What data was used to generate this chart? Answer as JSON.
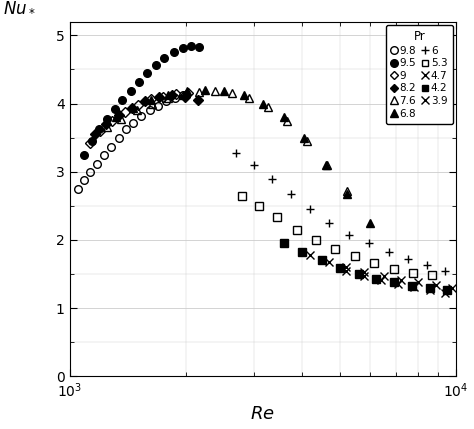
{
  "xlim": [
    1000,
    10000
  ],
  "ylim": [
    0,
    5.2
  ],
  "yticks": [
    0,
    1,
    2,
    3,
    4,
    5
  ],
  "legend_title": "Pr",
  "series": {
    "Pr9.8": {
      "label": "9.8",
      "marker": "o",
      "filled": false,
      "x": [
        1050,
        1090,
        1130,
        1180,
        1230,
        1280,
        1340,
        1400,
        1460,
        1530,
        1610,
        1690,
        1780,
        1870,
        1960
      ],
      "y": [
        2.75,
        2.88,
        3.0,
        3.12,
        3.25,
        3.37,
        3.5,
        3.62,
        3.72,
        3.82,
        3.9,
        3.97,
        4.03,
        4.08,
        4.12
      ]
    },
    "Pr9.5": {
      "label": "9.5",
      "marker": "o",
      "filled": true,
      "x": [
        1090,
        1140,
        1190,
        1250,
        1310,
        1370,
        1440,
        1510,
        1590,
        1670,
        1760,
        1860,
        1960,
        2060,
        2160
      ],
      "y": [
        3.25,
        3.45,
        3.62,
        3.78,
        3.92,
        4.05,
        4.18,
        4.32,
        4.45,
        4.57,
        4.67,
        4.75,
        4.82,
        4.85,
        4.83
      ]
    },
    "Pr9": {
      "label": "9",
      "marker": "D",
      "filled": false,
      "x": [
        1130,
        1200,
        1290,
        1390,
        1500,
        1620,
        1740,
        1880,
        2020
      ],
      "y": [
        3.42,
        3.6,
        3.75,
        3.88,
        3.98,
        4.06,
        4.1,
        4.14,
        4.16
      ]
    },
    "Pr8.2": {
      "label": "8.2",
      "marker": "D",
      "filled": true,
      "x": [
        1160,
        1240,
        1340,
        1450,
        1570,
        1700,
        1840,
        1990,
        2150
      ],
      "y": [
        3.55,
        3.7,
        3.83,
        3.94,
        4.03,
        4.09,
        4.12,
        4.1,
        4.05
      ]
    },
    "Pr7.6": {
      "label": "7.6",
      "marker": "^",
      "filled": false,
      "x": [
        1250,
        1360,
        1490,
        1630,
        1800,
        1970,
        2160,
        2380,
        2630,
        2920,
        3260,
        3660,
        4120,
        4640,
        5240
      ],
      "y": [
        3.65,
        3.78,
        3.9,
        4.0,
        4.08,
        4.13,
        4.17,
        4.18,
        4.15,
        4.08,
        3.95,
        3.75,
        3.45,
        3.1,
        2.72
      ]
    },
    "Pr6.8": {
      "label": "6.8",
      "marker": "^",
      "filled": true,
      "x": [
        1320,
        1460,
        1620,
        1800,
        2010,
        2240,
        2510,
        2820,
        3170,
        3580,
        4050,
        4610,
        5240,
        5980
      ],
      "y": [
        3.8,
        3.93,
        4.05,
        4.13,
        4.18,
        4.2,
        4.18,
        4.12,
        4.0,
        3.8,
        3.5,
        3.1,
        2.68,
        2.25
      ]
    },
    "Pr6": {
      "label": "6",
      "marker": "+",
      "filled": false,
      "x": [
        2700,
        3000,
        3350,
        3750,
        4200,
        4700,
        5300,
        5950,
        6700,
        7500,
        8400,
        9400
      ],
      "y": [
        3.28,
        3.1,
        2.9,
        2.68,
        2.45,
        2.25,
        2.08,
        1.95,
        1.83,
        1.72,
        1.63,
        1.55
      ]
    },
    "Pr5.3": {
      "label": "5.3",
      "marker": "s",
      "filled": false,
      "x": [
        2800,
        3100,
        3450,
        3870,
        4340,
        4870,
        5470,
        6150,
        6900,
        7740,
        8680
      ],
      "y": [
        2.65,
        2.5,
        2.33,
        2.15,
        2.0,
        1.87,
        1.76,
        1.66,
        1.58,
        1.52,
        1.48
      ]
    },
    "Pr4.7": {
      "label": "4.7",
      "marker": "x",
      "filled": false,
      "x": [
        4200,
        4700,
        5200,
        5800,
        6500,
        7200,
        8000,
        8900,
        9800
      ],
      "y": [
        1.78,
        1.68,
        1.6,
        1.53,
        1.47,
        1.42,
        1.38,
        1.34,
        1.3
      ]
    },
    "Pr4.2": {
      "label": "4.2",
      "marker": "s",
      "filled": true,
      "x": [
        3600,
        4000,
        4500,
        5000,
        5600,
        6200,
        6900,
        7700,
        8600,
        9500
      ],
      "y": [
        1.95,
        1.83,
        1.7,
        1.59,
        1.5,
        1.43,
        1.38,
        1.33,
        1.29,
        1.26
      ]
    },
    "Pr3.9": {
      "label": "3.9",
      "marker": "x",
      "filled": false,
      "x": [
        5200,
        5800,
        6400,
        7100,
        7800,
        8600,
        9400
      ],
      "y": [
        1.55,
        1.47,
        1.41,
        1.36,
        1.31,
        1.27,
        1.22
      ]
    }
  },
  "legend_order": [
    "9.8",
    "9.5",
    "9",
    "8.2",
    "7.6",
    "6.8",
    "6",
    "5.3",
    "4.7",
    "4.2",
    "3.9"
  ],
  "legend_markers": [
    "o",
    "o",
    "D",
    "D",
    "^",
    "^",
    "+",
    "s",
    "x",
    "s",
    "x"
  ],
  "legend_filled": [
    false,
    true,
    false,
    true,
    false,
    true,
    false,
    false,
    false,
    true,
    false
  ]
}
